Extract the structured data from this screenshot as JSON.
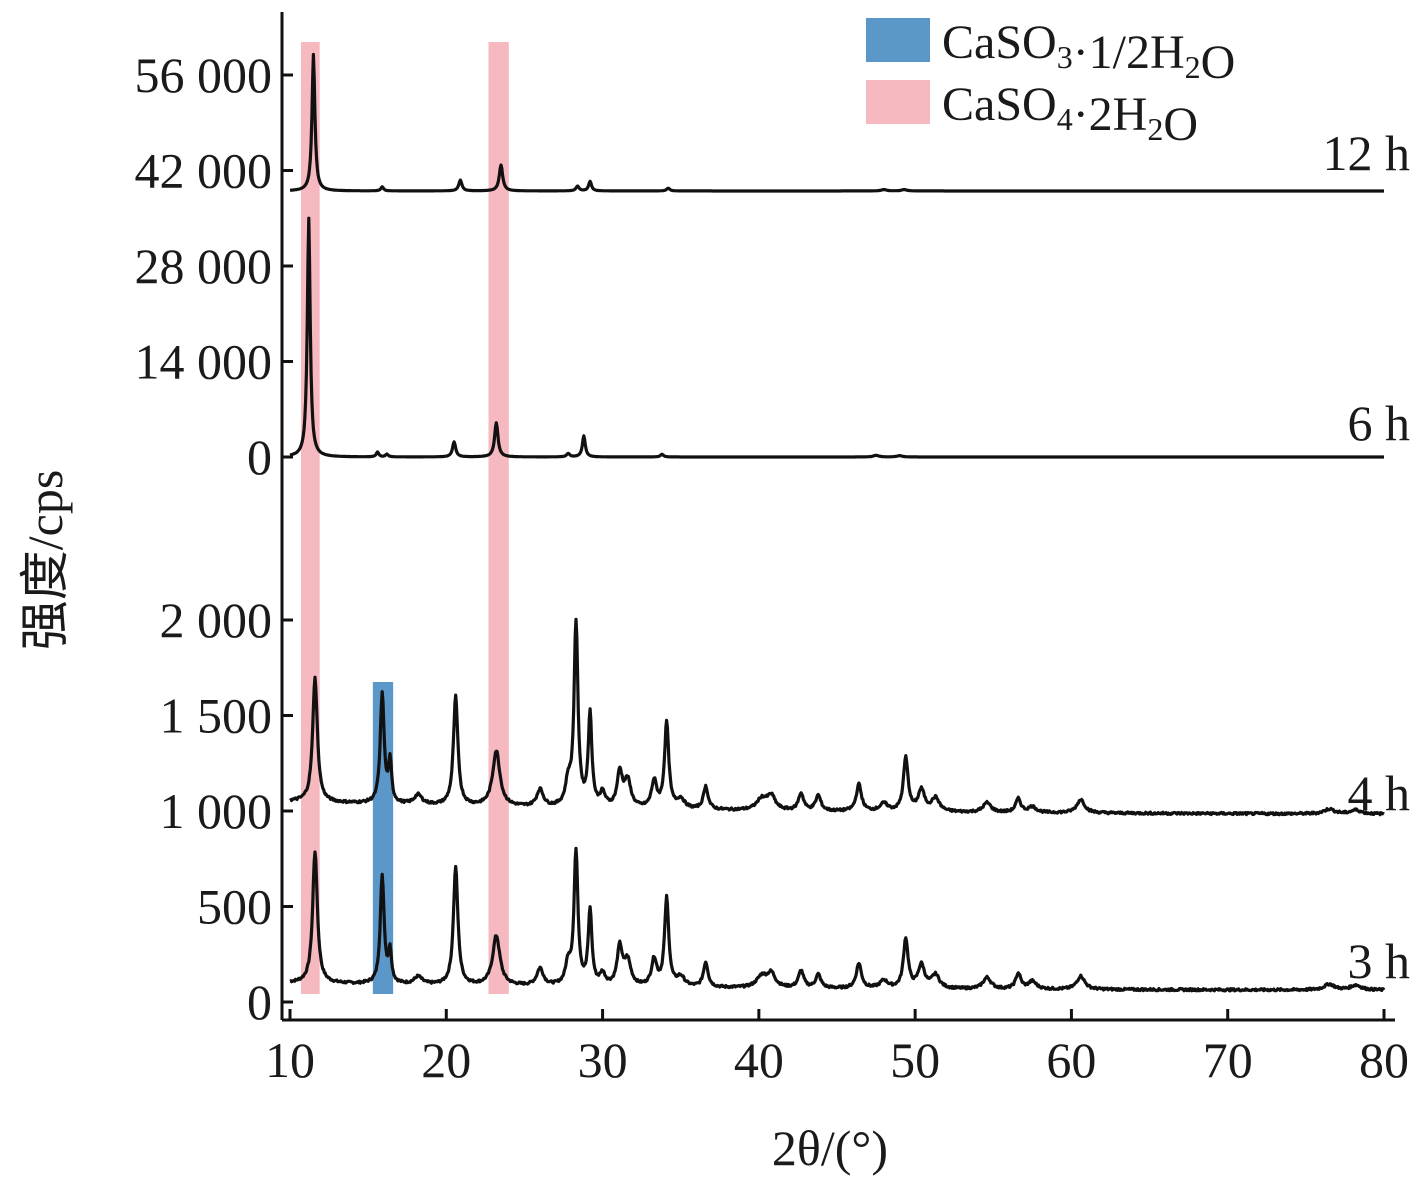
{
  "chart_data": {
    "type": "line",
    "title": "",
    "xlabel": "2θ/(°)",
    "ylabel": "强度/cps",
    "xlim": [
      10,
      80
    ],
    "x_ticks": [
      "10",
      "20",
      "30",
      "40",
      "50",
      "60",
      "70",
      "80"
    ],
    "y_ticks_lower": [
      "0",
      "500",
      "1 000",
      "1 500",
      "2 000"
    ],
    "y_ticks_upper": [
      "0",
      "14 000",
      "28 000",
      "42 000",
      "56 000"
    ],
    "ylim_lower": [
      0,
      2000
    ],
    "ylim_upper": [
      0,
      56000
    ],
    "legend": [
      {
        "text_parts": [
          [
            "CaSO",
            ""
          ],
          [
            "3",
            "sub"
          ],
          [
            "·1/2H",
            ""
          ],
          [
            "2",
            "sub"
          ],
          [
            "O",
            ""
          ]
        ],
        "color": "#5b97c9"
      },
      {
        "text_parts": [
          [
            "CaSO",
            ""
          ],
          [
            "4",
            "sub"
          ],
          [
            "·2H",
            ""
          ],
          [
            "2",
            "sub"
          ],
          [
            "O",
            ""
          ]
        ],
        "color": "#f7b9c0"
      }
    ],
    "legend_position": "top-right",
    "highlight_bands": [
      {
        "phase": "CaSO₄·2H₂O",
        "x_range": [
          10.7,
          11.9
        ],
        "color": "#f7b9c0",
        "extent": "full"
      },
      {
        "phase": "CaSO₄·2H₂O",
        "x_range": [
          22.7,
          24.0
        ],
        "color": "#f7b9c0",
        "extent": "full"
      },
      {
        "phase": "CaSO₃·1/2H₂O",
        "x_range": [
          15.3,
          16.6
        ],
        "color": "#5b97c9",
        "extent": "lower"
      }
    ],
    "series": [
      {
        "name": "3 h",
        "panel": "lower",
        "baseline": 60,
        "noise": 12,
        "tail": 40,
        "peaks": [
          [
            11.6,
            690,
            0.18
          ],
          [
            15.9,
            560,
            0.15
          ],
          [
            16.4,
            160,
            0.12
          ],
          [
            18.2,
            40,
            0.3
          ],
          [
            20.6,
            620,
            0.17
          ],
          [
            23.2,
            260,
            0.28
          ],
          [
            26.0,
            90,
            0.25
          ],
          [
            27.8,
            110,
            0.2
          ],
          [
            28.3,
            700,
            0.15
          ],
          [
            29.2,
            390,
            0.14
          ],
          [
            30.0,
            60,
            0.2
          ],
          [
            31.1,
            200,
            0.2
          ],
          [
            31.6,
            130,
            0.25
          ],
          [
            33.3,
            140,
            0.2
          ],
          [
            34.1,
            460,
            0.16
          ],
          [
            35.0,
            50,
            0.3
          ],
          [
            36.6,
            130,
            0.18
          ],
          [
            40.2,
            60,
            0.4
          ],
          [
            40.8,
            70,
            0.3
          ],
          [
            42.7,
            90,
            0.2
          ],
          [
            43.8,
            70,
            0.2
          ],
          [
            46.4,
            130,
            0.2
          ],
          [
            48.0,
            40,
            0.3
          ],
          [
            49.4,
            260,
            0.18
          ],
          [
            50.4,
            120,
            0.25
          ],
          [
            51.3,
            70,
            0.3
          ],
          [
            54.6,
            60,
            0.3
          ],
          [
            56.6,
            80,
            0.2
          ],
          [
            57.5,
            40,
            0.3
          ],
          [
            60.6,
            70,
            0.3
          ],
          [
            76.5,
            30,
            0.4
          ],
          [
            78.2,
            25,
            0.4
          ]
        ]
      },
      {
        "name": "4 h",
        "panel": "lower",
        "baseline": 980,
        "noise": 12,
        "tail": 70,
        "peaks": [
          [
            11.6,
            650,
            0.18
          ],
          [
            15.9,
            570,
            0.15
          ],
          [
            16.4,
            210,
            0.12
          ],
          [
            18.2,
            50,
            0.3
          ],
          [
            20.6,
            570,
            0.17
          ],
          [
            23.2,
            290,
            0.28
          ],
          [
            26.0,
            90,
            0.25
          ],
          [
            27.8,
            120,
            0.2
          ],
          [
            28.3,
            960,
            0.15
          ],
          [
            29.2,
            480,
            0.14
          ],
          [
            30.0,
            70,
            0.2
          ],
          [
            31.1,
            180,
            0.2
          ],
          [
            31.6,
            140,
            0.25
          ],
          [
            33.3,
            140,
            0.2
          ],
          [
            34.1,
            450,
            0.16
          ],
          [
            35.0,
            50,
            0.3
          ],
          [
            36.6,
            120,
            0.18
          ],
          [
            40.2,
            60,
            0.4
          ],
          [
            40.8,
            70,
            0.3
          ],
          [
            42.7,
            90,
            0.2
          ],
          [
            43.8,
            80,
            0.2
          ],
          [
            46.4,
            140,
            0.2
          ],
          [
            48.0,
            40,
            0.3
          ],
          [
            49.4,
            280,
            0.18
          ],
          [
            50.4,
            110,
            0.25
          ],
          [
            51.3,
            70,
            0.3
          ],
          [
            54.6,
            50,
            0.3
          ],
          [
            56.6,
            70,
            0.2
          ],
          [
            57.5,
            30,
            0.3
          ],
          [
            60.6,
            70,
            0.3
          ],
          [
            76.5,
            25,
            0.4
          ],
          [
            78.2,
            20,
            0.4
          ]
        ]
      },
      {
        "name": "6 h",
        "panel": "upper",
        "baseline": 0,
        "noise": 0,
        "tail": 0,
        "peaks": [
          [
            11.2,
            35000,
            0.11
          ],
          [
            15.6,
            700,
            0.1
          ],
          [
            16.2,
            400,
            0.1
          ],
          [
            20.5,
            2200,
            0.12
          ],
          [
            23.2,
            5000,
            0.13
          ],
          [
            27.8,
            500,
            0.12
          ],
          [
            28.8,
            3100,
            0.11
          ],
          [
            33.8,
            400,
            0.12
          ],
          [
            47.5,
            250,
            0.2
          ],
          [
            49.0,
            200,
            0.2
          ]
        ]
      },
      {
        "name": "12 h",
        "panel": "upper",
        "baseline": 39000,
        "noise": 0,
        "tail": 0,
        "peaks": [
          [
            11.5,
            20000,
            0.11
          ],
          [
            15.9,
            600,
            0.1
          ],
          [
            20.9,
            1600,
            0.12
          ],
          [
            23.5,
            3800,
            0.13
          ],
          [
            28.4,
            700,
            0.12
          ],
          [
            29.2,
            1400,
            0.11
          ],
          [
            34.2,
            400,
            0.12
          ],
          [
            48.0,
            200,
            0.2
          ],
          [
            49.3,
            200,
            0.2
          ]
        ]
      }
    ]
  }
}
